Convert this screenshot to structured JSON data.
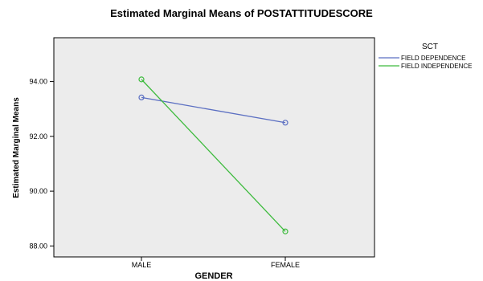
{
  "chart_data": {
    "type": "line",
    "title": "Estimated Marginal Means of POSTATTITUDESCORE",
    "xlabel": "GENDER",
    "ylabel": "Estimated Marginal Means",
    "categories": [
      "MALE",
      "FEMALE"
    ],
    "yticks": [
      "88.00",
      "90.00",
      "92.00",
      "94.00"
    ],
    "ylim": [
      87.6,
      95.6
    ],
    "legend_title": "SCT",
    "legend_position": "right",
    "background_color": "#ececec",
    "grid": false,
    "series": [
      {
        "name": "FIELD DEPENDENCE",
        "color": "#5b6fc2",
        "values": [
          93.42,
          92.5
        ]
      },
      {
        "name": "FIELD INDEPENDENCE",
        "color": "#3dbb3d",
        "values": [
          94.08,
          88.53
        ]
      }
    ]
  }
}
